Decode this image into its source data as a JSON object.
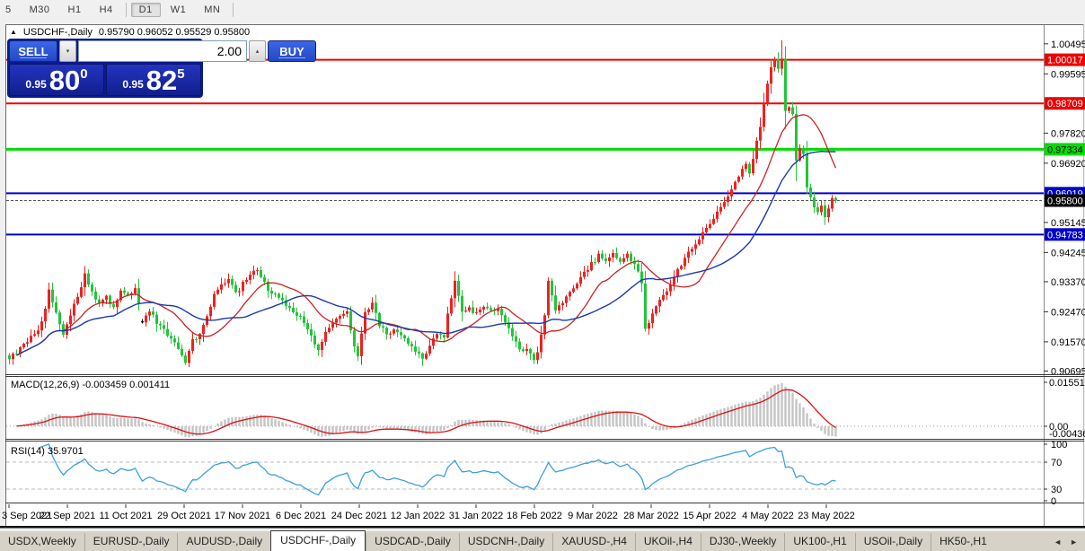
{
  "toolbar": {
    "items": [
      "5",
      "M30",
      "H1",
      "H4",
      "D1",
      "W1",
      "MN"
    ],
    "active": "D1"
  },
  "chart_header": {
    "collapse_icon": "▲",
    "symbol_title": "USDCHF-,Daily",
    "ohlc": "0.95790 0.96052 0.95529 0.95800"
  },
  "trade_panel": {
    "sell_label": "SELL",
    "buy_label": "BUY",
    "volume": "2.00",
    "spin_down": "▾",
    "spin_up": "▴",
    "sell_small": "0.95",
    "sell_big": "80",
    "sell_sup": "0",
    "buy_small": "0.95",
    "buy_big": "82",
    "buy_sup": "5"
  },
  "price_scale": {
    "ticks": [
      "1.00495",
      "0.99595",
      "0.97820",
      "0.96920",
      "0.95145",
      "0.94245",
      "0.93370",
      "0.92470",
      "0.91570",
      "0.90695"
    ],
    "badges": [
      {
        "price": "1.00017",
        "bg": "#ee0000",
        "fg": "#ffffff"
      },
      {
        "price": "0.98709",
        "bg": "#ee0000",
        "fg": "#ffffff"
      },
      {
        "price": "0.97334",
        "bg": "#00dd00",
        "fg": "#000000"
      },
      {
        "price": "0.96019",
        "bg": "#0000cc",
        "fg": "#ffffff"
      },
      {
        "price": "0.95800",
        "bg": "#000000",
        "fg": "#ffffff"
      },
      {
        "price": "0.94783",
        "bg": "#0000cc",
        "fg": "#ffffff"
      }
    ]
  },
  "indicators": {
    "macd": {
      "label": "MACD(12,26,9) -0.003459 0.001411",
      "scale_max": "0.015516",
      "scale_zero": "0.00",
      "scale_min": "-0.004367",
      "fast": 12,
      "slow": 26,
      "signal": 9
    },
    "rsi": {
      "label": "RSI(14) 35.9701",
      "period": 14,
      "levels": [
        "100",
        "70",
        "30",
        "0"
      ]
    }
  },
  "x_axis": {
    "dates": [
      "3 Sep 2021",
      "22 Sep 2021",
      "11 Oct 2021",
      "29 Oct 2021",
      "17 Nov 2021",
      "6 Dec 2021",
      "24 Dec 2021",
      "12 Jan 2022",
      "31 Jan 2022",
      "18 Feb 2022",
      "9 Mar 2022",
      "28 Mar 2022",
      "15 Apr 2022",
      "4 May 2022",
      "23 May 2022"
    ]
  },
  "tabs": {
    "items": [
      "USDX,Weekly",
      "EURUSD-,Daily",
      "AUDUSD-,Daily",
      "USDCHF-,Daily",
      "USDCAD-,Daily",
      "USDCNH-,Daily",
      "XAUUSD-,H4",
      "UKOil-,H4",
      "DJ30-,Weekly",
      "UK100-,H1",
      "USOil-,Daily",
      "HK50-,H1"
    ],
    "active_index": 3,
    "scroll_left": "◄",
    "scroll_right": "►"
  },
  "chart_data": {
    "type": "candlestick",
    "symbol": "USDCHF",
    "period": "Daily",
    "n": 231,
    "final_close": 0.958,
    "visible_price_range": [
      0.9045,
      1.01
    ],
    "horizontal_levels": [
      {
        "price": 1.00017,
        "color": "#ee0000",
        "width": 2
      },
      {
        "price": 0.98709,
        "color": "#ee0000",
        "width": 2
      },
      {
        "price": 0.97334,
        "color": "#00dd00",
        "width": 3
      },
      {
        "price": 0.96019,
        "color": "#0000cc",
        "width": 2
      },
      {
        "price": 0.94783,
        "color": "#0000cc",
        "width": 2
      }
    ],
    "current_price": {
      "value": 0.958,
      "label": "0.95800"
    },
    "close_anchors": [
      [
        0,
        0.9105
      ],
      [
        2,
        0.9125
      ],
      [
        5,
        0.916
      ],
      [
        8,
        0.919
      ],
      [
        10,
        0.9255
      ],
      [
        11,
        0.932
      ],
      [
        13,
        0.924
      ],
      [
        15,
        0.9185
      ],
      [
        17,
        0.924
      ],
      [
        19,
        0.929
      ],
      [
        21,
        0.936
      ],
      [
        23,
        0.931
      ],
      [
        25,
        0.927
      ],
      [
        27,
        0.929
      ],
      [
        29,
        0.926
      ],
      [
        31,
        0.931
      ],
      [
        33,
        0.929
      ],
      [
        35,
        0.932
      ],
      [
        37,
        0.922
      ],
      [
        39,
        0.925
      ],
      [
        41,
        0.9215
      ],
      [
        43,
        0.919
      ],
      [
        45,
        0.916
      ],
      [
        47,
        0.914
      ],
      [
        49,
        0.91
      ],
      [
        51,
        0.916
      ],
      [
        53,
        0.918
      ],
      [
        55,
        0.924
      ],
      [
        57,
        0.9295
      ],
      [
        59,
        0.933
      ],
      [
        61,
        0.9342
      ],
      [
        63,
        0.93
      ],
      [
        65,
        0.933
      ],
      [
        67,
        0.936
      ],
      [
        69,
        0.9374
      ],
      [
        71,
        0.933
      ],
      [
        73,
        0.93
      ],
      [
        75,
        0.929
      ],
      [
        77,
        0.927
      ],
      [
        79,
        0.9245
      ],
      [
        81,
        0.9235
      ],
      [
        83,
        0.919
      ],
      [
        86,
        0.9135
      ],
      [
        88,
        0.918
      ],
      [
        90,
        0.921
      ],
      [
        92,
        0.923
      ],
      [
        94,
        0.9245
      ],
      [
        96,
        0.914
      ],
      [
        97,
        0.912
      ],
      [
        99,
        0.924
      ],
      [
        101,
        0.927
      ],
      [
        103,
        0.921
      ],
      [
        105,
        0.9175
      ],
      [
        107,
        0.92
      ],
      [
        109,
        0.918
      ],
      [
        111,
        0.9155
      ],
      [
        113,
        0.913
      ],
      [
        115,
        0.9105
      ],
      [
        117,
        0.915
      ],
      [
        119,
        0.918
      ],
      [
        121,
        0.9165
      ],
      [
        122,
        0.924
      ],
      [
        124,
        0.9334
      ],
      [
        126,
        0.9245
      ],
      [
        128,
        0.926
      ],
      [
        130,
        0.924
      ],
      [
        132,
        0.926
      ],
      [
        134,
        0.9245
      ],
      [
        136,
        0.9255
      ],
      [
        138,
        0.922
      ],
      [
        140,
        0.918
      ],
      [
        142,
        0.914
      ],
      [
        144,
        0.913
      ],
      [
        146,
        0.9105
      ],
      [
        147,
        0.912
      ],
      [
        149,
        0.924
      ],
      [
        150,
        0.9334
      ],
      [
        152,
        0.9254
      ],
      [
        154,
        0.928
      ],
      [
        156,
        0.9307
      ],
      [
        158,
        0.9334
      ],
      [
        160,
        0.936
      ],
      [
        162,
        0.939
      ],
      [
        164,
        0.9415
      ],
      [
        166,
        0.94
      ],
      [
        168,
        0.9425
      ],
      [
        170,
        0.9395
      ],
      [
        172,
        0.9415
      ],
      [
        174,
        0.939
      ],
      [
        176,
        0.9334
      ],
      [
        177,
        0.92
      ],
      [
        179,
        0.9235
      ],
      [
        181,
        0.928
      ],
      [
        183,
        0.931
      ],
      [
        185,
        0.9355
      ],
      [
        187,
        0.939
      ],
      [
        189,
        0.942
      ],
      [
        191,
        0.9448
      ],
      [
        193,
        0.948
      ],
      [
        195,
        0.951
      ],
      [
        197,
        0.9545
      ],
      [
        199,
        0.958
      ],
      [
        201,
        0.9615
      ],
      [
        203,
        0.9648
      ],
      [
        205,
        0.969
      ],
      [
        206,
        0.9662
      ],
      [
        207,
        0.9705
      ],
      [
        208,
        0.976
      ],
      [
        209,
        0.98
      ],
      [
        210,
        0.987
      ],
      [
        211,
        0.993
      ],
      [
        212,
        0.998
      ],
      [
        213,
        1.0005
      ],
      [
        214,
        0.9975
      ],
      [
        215,
        1.0005
      ],
      [
        216,
        0.9848
      ],
      [
        217,
        0.986
      ],
      [
        218,
        0.984
      ],
      [
        219,
        0.97
      ],
      [
        220,
        0.9735
      ],
      [
        221,
        0.972
      ],
      [
        222,
        0.962
      ],
      [
        223,
        0.959
      ],
      [
        224,
        0.956
      ],
      [
        225,
        0.9545
      ],
      [
        226,
        0.9565
      ],
      [
        227,
        0.953
      ],
      [
        228,
        0.9556
      ],
      [
        229,
        0.9588
      ],
      [
        230,
        0.958
      ]
    ],
    "forced_wicks": [
      [
        215,
        "h",
        1.006
      ],
      [
        115,
        "l",
        0.9085
      ],
      [
        227,
        "l",
        0.9507
      ],
      [
        49,
        "l",
        0.9088
      ]
    ],
    "black_candle_index": 37,
    "ma_fast_period": 16,
    "ma_slow_period": 30,
    "colors": {
      "bull": "#f02020",
      "bear": "#22c53a",
      "black": "#111111",
      "ma_fast": "#cc2222",
      "ma_slow": "#1a3ab0",
      "macd_hist": "#c4c4c4",
      "macd_signal": "#dd1111",
      "rsi_line": "#3d9fe0"
    }
  }
}
